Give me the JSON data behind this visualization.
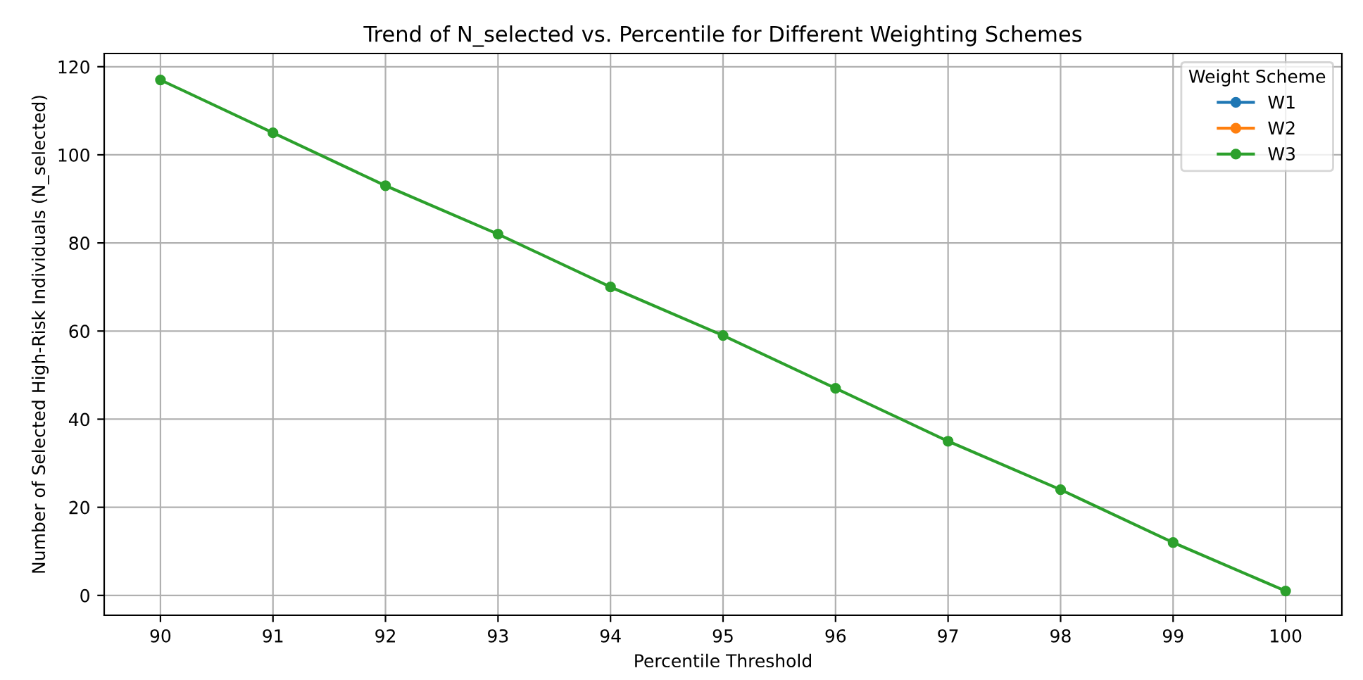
{
  "chart_data": {
    "type": "line",
    "title": "Trend of N_selected vs. Percentile for Different Weighting Schemes",
    "xlabel": "Percentile Threshold",
    "ylabel": "Number of Selected High-Risk Individuals (N_selected)",
    "legend_title": "Weight Scheme",
    "legend": "top right",
    "grid": true,
    "marker": "circle",
    "line_style": "solid",
    "x": [
      90,
      91,
      92,
      93,
      94,
      95,
      96,
      97,
      98,
      99,
      100
    ],
    "xlim": [
      89.5,
      100.5
    ],
    "xticks": [
      90,
      91,
      92,
      93,
      94,
      95,
      96,
      97,
      98,
      99,
      100
    ],
    "ylim": [
      -4.5,
      123
    ],
    "yticks": [
      0,
      20,
      40,
      60,
      80,
      100,
      120
    ],
    "series": [
      {
        "name": "W1",
        "color": "#1f77b4",
        "values": [
          null,
          null,
          null,
          null,
          null,
          null,
          null,
          null,
          null,
          null,
          null
        ]
      },
      {
        "name": "W2",
        "color": "#ff7f0e",
        "values": [
          null,
          null,
          null,
          null,
          null,
          null,
          null,
          null,
          null,
          null,
          null
        ]
      },
      {
        "name": "W3",
        "color": "#2ca02c",
        "values": [
          117,
          105,
          93,
          82,
          70,
          59,
          47,
          35,
          24,
          12,
          1
        ]
      }
    ]
  }
}
